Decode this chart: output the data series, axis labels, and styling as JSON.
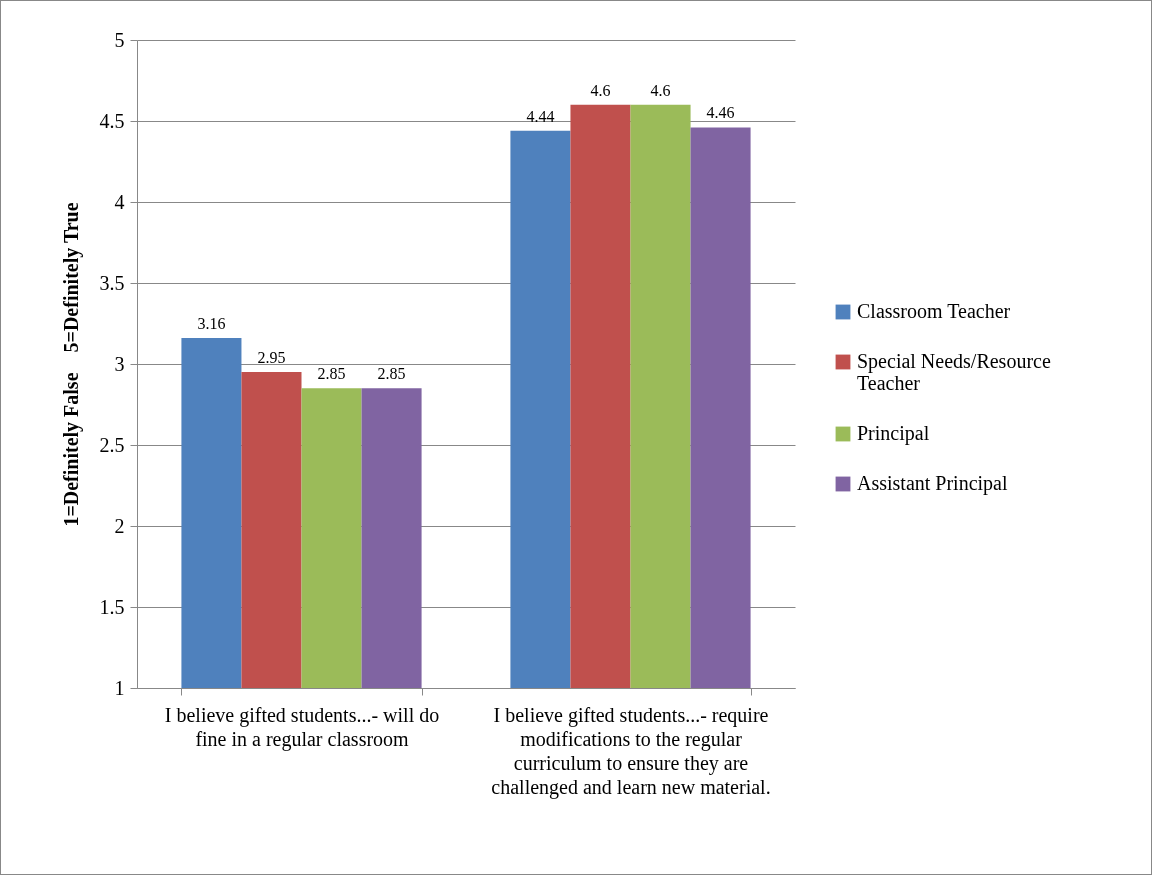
{
  "chart_data": {
    "type": "bar",
    "ylabel": "1=Definitely False    5=Definitely True",
    "categories": [
      "I believe gifted students...- will do fine in a regular classroom",
      "I believe gifted students...- require modifications to the regular curriculum to ensure they are challenged and learn new material."
    ],
    "series": [
      {
        "name": "Classroom Teacher",
        "color": "#4f81bd",
        "values": [
          3.16,
          4.44
        ]
      },
      {
        "name": "Special Needs/Resource Teacher",
        "color": "#c0504d",
        "values": [
          2.95,
          4.6
        ]
      },
      {
        "name": "Principal",
        "color": "#9bbb59",
        "values": [
          2.85,
          4.6
        ]
      },
      {
        "name": "Assistant Principal",
        "color": "#8064a2",
        "values": [
          2.85,
          4.46
        ]
      }
    ],
    "ylim": [
      1,
      5
    ],
    "yticks": [
      1,
      1.5,
      2,
      2.5,
      3,
      3.5,
      4,
      4.5,
      5
    ],
    "grid": "y",
    "legend": "right",
    "data_labels": true
  }
}
